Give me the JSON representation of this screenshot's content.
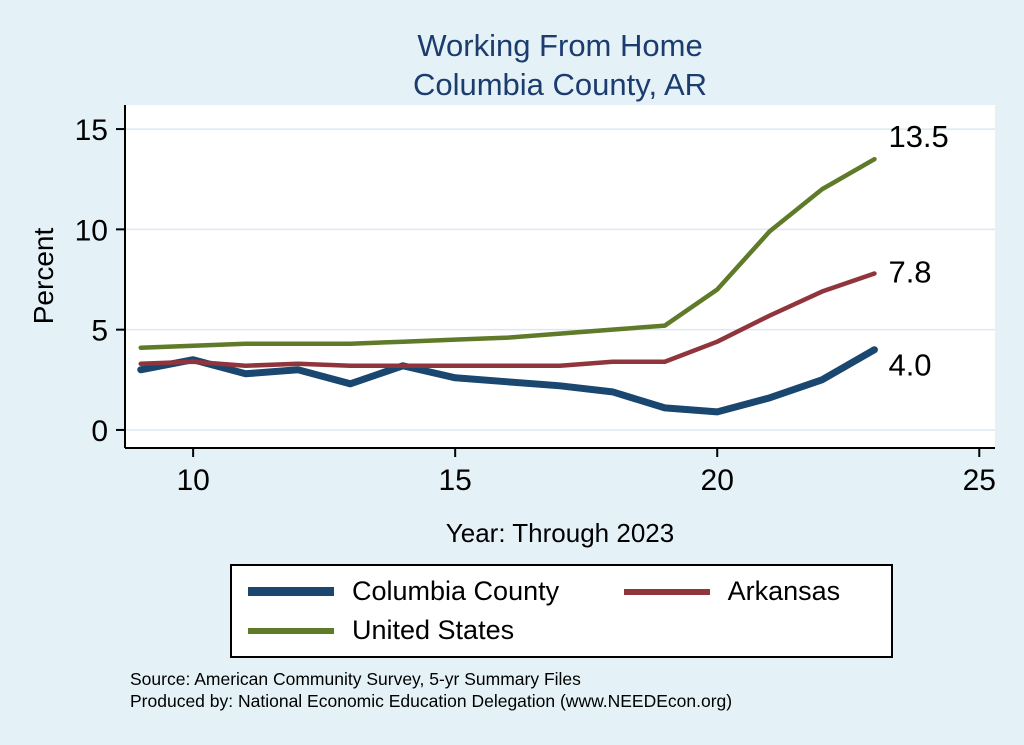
{
  "title": {
    "line1": "Working From Home",
    "line2": "Columbia County, AR"
  },
  "y_axis_label": "Percent",
  "x_axis_label": "Year: Through 2023",
  "footer": {
    "source": "Source: American Community Survey, 5-yr Summary Files",
    "produced_by": "Produced by: National Economic Education Delegation (www.NEEDEcon.org)"
  },
  "colors": {
    "background": "#e4f2f8",
    "title": "#1c3c6e",
    "grid": "#dce9f0",
    "axis": "#000000",
    "plot_background": "#ffffff"
  },
  "chart_data": {
    "type": "line",
    "title": "Working From Home — Columbia County, AR",
    "xlabel": "Year: Through 2023",
    "ylabel": "Percent",
    "x": [
      9,
      10,
      11,
      12,
      13,
      14,
      15,
      16,
      17,
      18,
      19,
      20,
      21,
      22,
      23
    ],
    "x_ticks": [
      10,
      15,
      20,
      25
    ],
    "y_ticks": [
      0,
      5,
      10,
      15
    ],
    "xlim": [
      8.7,
      25.3
    ],
    "ylim": [
      -0.9,
      16.2
    ],
    "grid": "horizontal",
    "legend_position": "bottom",
    "series": [
      {
        "name": "Columbia County",
        "color": "#1a476f",
        "line_width": 7,
        "end_label": "4.0",
        "end_label_dy": 26,
        "values": [
          3.0,
          3.5,
          2.8,
          3.0,
          2.3,
          3.2,
          2.6,
          2.4,
          2.2,
          1.9,
          1.1,
          0.9,
          1.6,
          2.5,
          4.0
        ]
      },
      {
        "name": "Arkansas",
        "color": "#90353b",
        "line_width": 4.5,
        "end_label": "7.8",
        "end_label_dy": 9,
        "values": [
          3.3,
          3.4,
          3.2,
          3.3,
          3.2,
          3.2,
          3.2,
          3.2,
          3.2,
          3.4,
          3.4,
          4.4,
          5.7,
          6.9,
          7.8
        ]
      },
      {
        "name": "United States",
        "color": "#5f7a28",
        "line_width": 4.5,
        "end_label": "13.5",
        "end_label_dy": -12,
        "values": [
          4.1,
          4.2,
          4.3,
          4.3,
          4.3,
          4.4,
          4.5,
          4.6,
          4.8,
          5.0,
          5.2,
          7.0,
          9.9,
          12.0,
          13.5
        ]
      }
    ]
  }
}
